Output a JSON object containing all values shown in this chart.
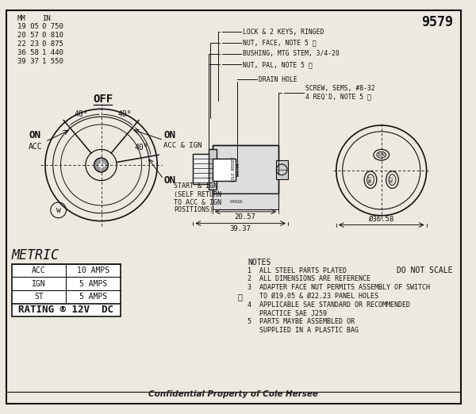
{
  "title_num": "9579",
  "bg_color": "#ede9e0",
  "border_color": "#222222",
  "mm_in_table": [
    [
      "MM",
      "IN"
    ],
    [
      "19 05",
      "0 750"
    ],
    [
      "20 57",
      "0 810"
    ],
    [
      "22 23",
      "0 875"
    ],
    [
      "36 58",
      "1 440"
    ],
    [
      "39 37",
      "1 550"
    ]
  ],
  "notes": [
    "NOTES",
    "1  ALL STEEL PARTS PLATED",
    "2  ALL DIMENSIONS ARE REFERENCE",
    "3  ADAPTER FACE NUT PERMITS ASSEMBLY OF SWITCH",
    "   TO Ø19.05 & Ø22.23 PANEL HOLES",
    "4  APPLICABLE SAE STANDARD OR RECOMMENDED",
    "   PRACTICE SAE J259",
    "5  PARTS MAYBE ASSEMBLED OR",
    "   SUPPLIED IN A PLASTIC BAG"
  ],
  "metric_table": {
    "title": "METRIC",
    "rows": [
      [
        "ACC",
        "10 AMPS"
      ],
      [
        "IGN",
        "5 AMPS"
      ],
      [
        "ST",
        "5 AMPS"
      ]
    ],
    "rating": "RATING ® 12V  DC"
  },
  "dim_labels": [
    "20.57",
    "39.37",
    "Ø36.58"
  ],
  "callout_labels": [
    "LOCK & 2 KEYS, RINGED",
    "NUT, FACE, NOTE 5 ⓨ",
    "BUSHING, MTG STEM, 3/4-20",
    "NUT, PAL, NOTE 5 ⓨ",
    "DRAIN HOLE",
    "SCREW, SEMS, #8-32\n4 REQ'D, NOTE 5 ⓨ"
  ],
  "bottom_text": "Confidential Property of Cole Hersee",
  "do_not_scale": "DO NOT SCALE"
}
